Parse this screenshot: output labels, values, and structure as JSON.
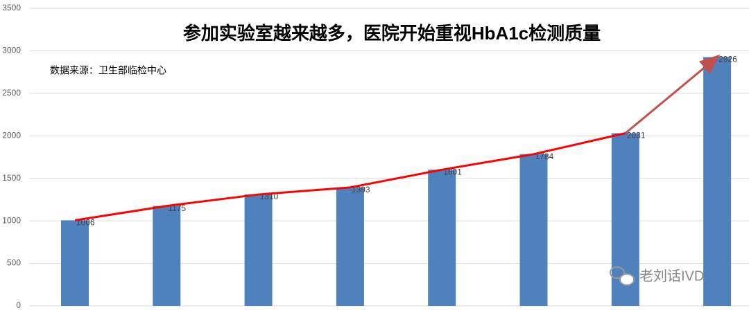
{
  "chart_data": {
    "type": "bar",
    "title": "参加实验室越来越多，医院开始重视HbA1c检测质量",
    "annotation": "数据来源：卫生部临检中心",
    "watermark": "老刘话IVD",
    "categories": [
      null,
      null,
      null,
      null,
      null,
      null,
      null,
      null
    ],
    "values": [
      1006,
      1175,
      1310,
      1393,
      1601,
      1784,
      2031,
      2926
    ],
    "color": "#4f81bd",
    "trend_color": "#ff0000",
    "arrow_color": "#c0504d",
    "ylim": [
      0,
      3500
    ],
    "yticks": [
      0,
      500,
      1000,
      1500,
      2000,
      2500,
      3000,
      3500
    ],
    "grid": true
  }
}
